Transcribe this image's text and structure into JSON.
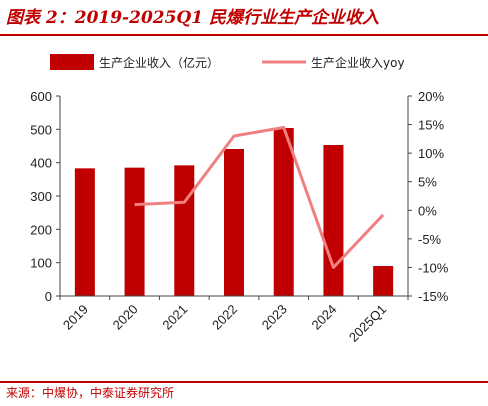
{
  "title": "图表 2：2019-2025Q1 民爆行业生产企业收入",
  "source": "来源：中爆协，中泰证券研究所",
  "colors": {
    "bar": "#c00000",
    "line": "#f08080",
    "axis": "#444444",
    "title": "#c00000"
  },
  "chart_data": {
    "type": "bar",
    "categories": [
      "2019",
      "2020",
      "2021",
      "2022",
      "2023",
      "2024",
      "2025Q1"
    ],
    "series": [
      {
        "name": "生产企业收入（亿元）",
        "type": "bar",
        "axis": "left",
        "values": [
          383,
          385,
          392,
          441,
          504,
          453,
          90
        ]
      },
      {
        "name": "生产企业收入yoy",
        "type": "line",
        "axis": "right",
        "values": [
          null,
          1.0,
          1.4,
          13.0,
          14.5,
          -10.0,
          -0.8
        ]
      }
    ],
    "y_left": {
      "range": [
        0,
        600
      ],
      "ticks": [
        "0",
        "100",
        "200",
        "300",
        "400",
        "500",
        "600"
      ]
    },
    "y_right": {
      "range": [
        -15,
        20
      ],
      "ticks": [
        "-15%",
        "-10%",
        "-5%",
        "0%",
        "5%",
        "10%",
        "15%",
        "20%"
      ]
    },
    "legend_position": "top",
    "grid": false
  }
}
